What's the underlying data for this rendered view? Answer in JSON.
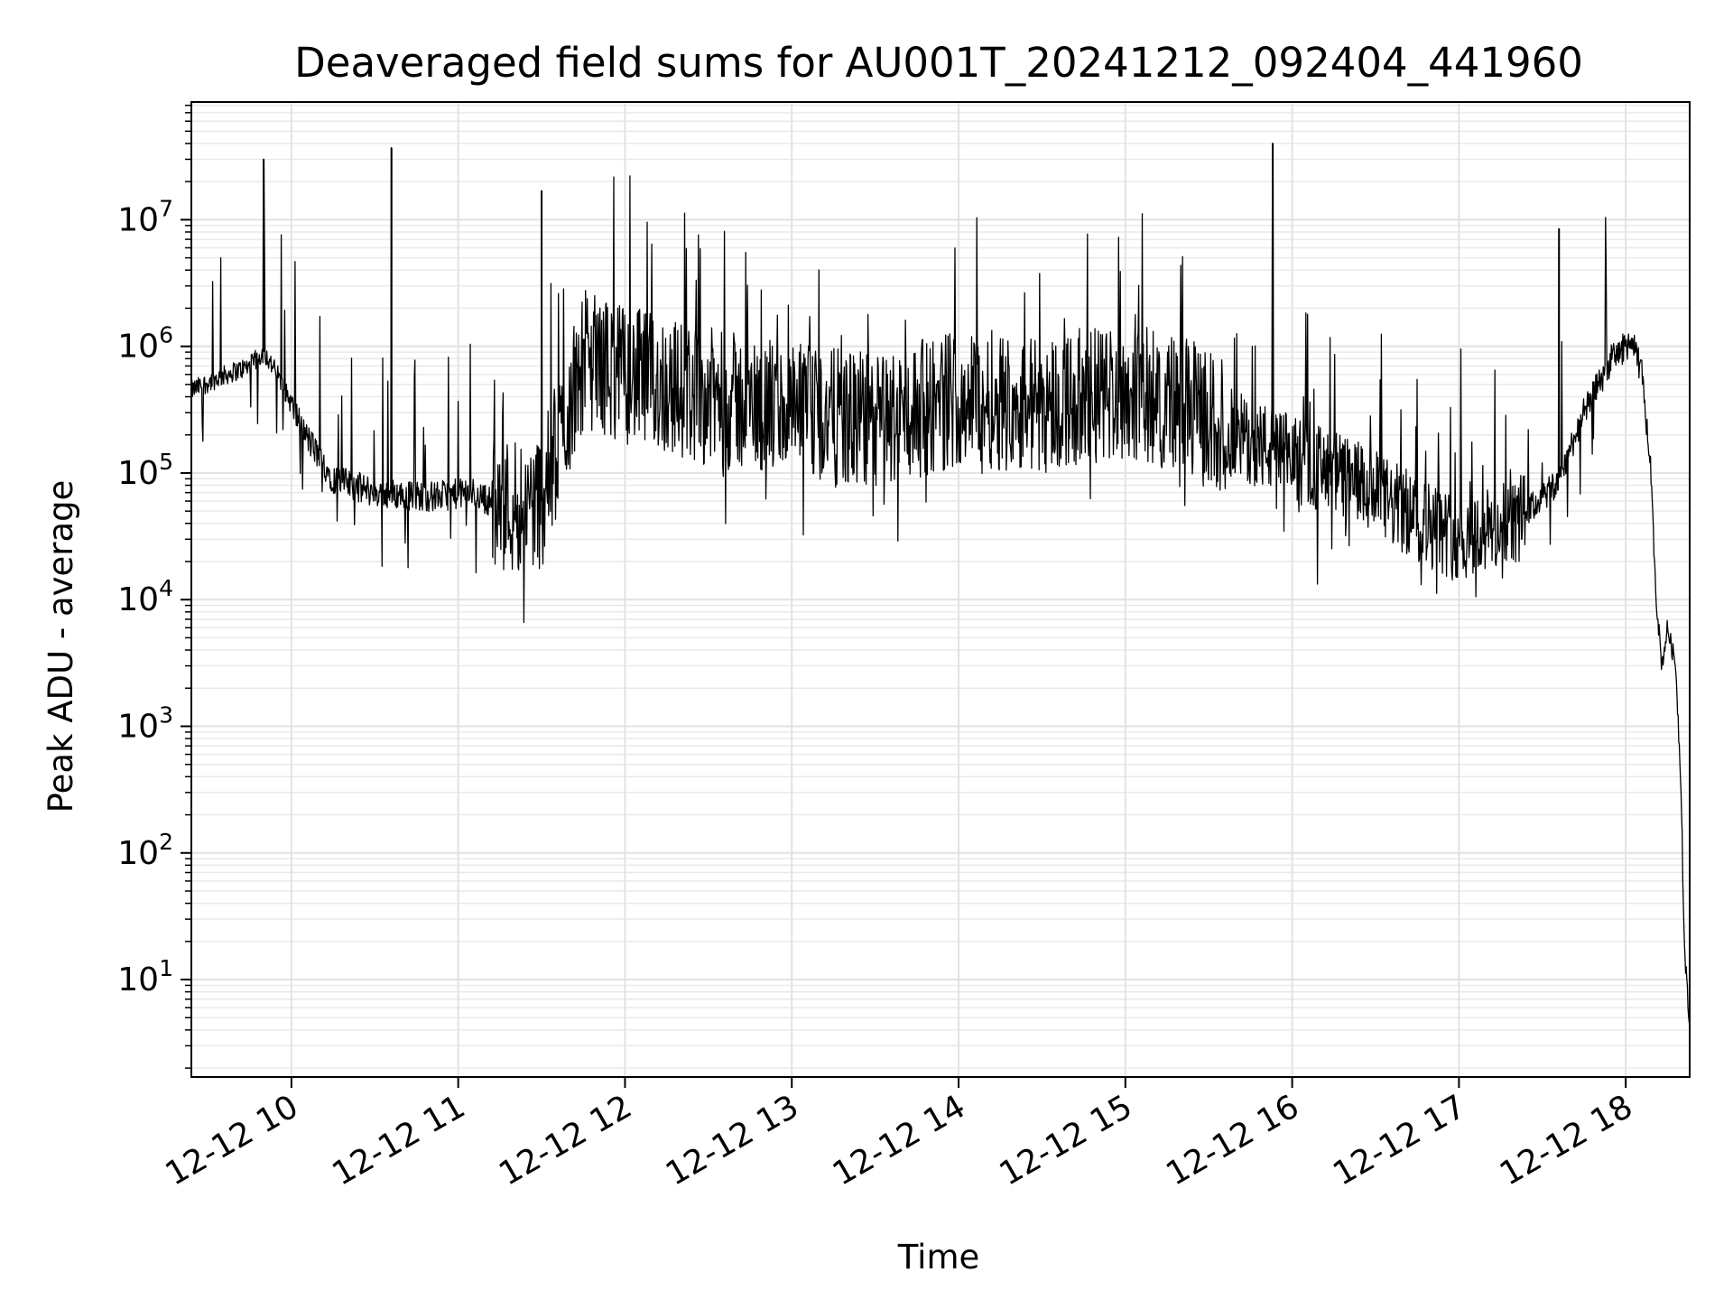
{
  "chart_data": {
    "type": "line",
    "title": "Deaveraged field sums for AU001T_20241212_092404_441960",
    "xlabel": "Time",
    "ylabel": "Peak ADU - average",
    "yscale": "log",
    "grid": true,
    "legend": "none",
    "line_color": "#000000",
    "xlim": [
      "2024-12-12 09:24",
      "2024-12-12 18:23"
    ],
    "ylim": [
      1.7,
      85000000.0
    ],
    "xticks": [
      {
        "label": "12-12 10",
        "value": "2024-12-12 10:00"
      },
      {
        "label": "12-12 11",
        "value": "2024-12-12 11:00"
      },
      {
        "label": "12-12 12",
        "value": "2024-12-12 12:00"
      },
      {
        "label": "12-12 13",
        "value": "2024-12-12 13:00"
      },
      {
        "label": "12-12 14",
        "value": "2024-12-12 14:00"
      },
      {
        "label": "12-12 15",
        "value": "2024-12-12 15:00"
      },
      {
        "label": "12-12 16",
        "value": "2024-12-12 16:00"
      },
      {
        "label": "12-12 17",
        "value": "2024-12-12 17:00"
      },
      {
        "label": "12-12 18",
        "value": "2024-12-12 18:00"
      }
    ],
    "yticks": [
      {
        "base": "10",
        "exp": "1",
        "value": 10
      },
      {
        "base": "10",
        "exp": "2",
        "value": 100
      },
      {
        "base": "10",
        "exp": "3",
        "value": 1000
      },
      {
        "base": "10",
        "exp": "4",
        "value": 10000
      },
      {
        "base": "10",
        "exp": "5",
        "value": 100000
      },
      {
        "base": "10",
        "exp": "6",
        "value": 1000000
      },
      {
        "base": "10",
        "exp": "7",
        "value": 10000000
      }
    ],
    "series": [
      {
        "values_envelope": [
          {
            "x": "2024-12-12 09:24",
            "y": 450000
          },
          {
            "x": "2024-12-12 09:35",
            "y": 580000
          },
          {
            "x": "2024-12-12 09:45",
            "y": 700000
          },
          {
            "x": "2024-12-12 09:50",
            "y": 900000
          },
          {
            "x": "2024-12-12 09:55",
            "y": 600000
          },
          {
            "x": "2024-12-12 10:05",
            "y": 200000
          },
          {
            "x": "2024-12-12 10:15",
            "y": 90000
          },
          {
            "x": "2024-12-12 10:30",
            "y": 70000
          },
          {
            "x": "2024-12-12 10:50",
            "y": 65000
          },
          {
            "x": "2024-12-12 11:05",
            "y": 70000
          },
          {
            "x": "2024-12-12 11:15",
            "y": 55000
          },
          {
            "x": "2024-12-12 11:30",
            "y": 60000
          },
          {
            "x": "2024-12-12 11:45",
            "y": 800000
          },
          {
            "x": "2024-12-12 12:00",
            "y": 600000
          },
          {
            "x": "2024-12-12 12:30",
            "y": 400000
          },
          {
            "x": "2024-12-12 13:00",
            "y": 300000
          },
          {
            "x": "2024-12-12 13:30",
            "y": 250000
          },
          {
            "x": "2024-12-12 14:00",
            "y": 400000
          },
          {
            "x": "2024-12-12 14:30",
            "y": 350000
          },
          {
            "x": "2024-12-12 15:00",
            "y": 450000
          },
          {
            "x": "2024-12-12 15:20",
            "y": 350000
          },
          {
            "x": "2024-12-12 15:40",
            "y": 200000
          },
          {
            "x": "2024-12-12 16:00",
            "y": 130000
          },
          {
            "x": "2024-12-12 16:20",
            "y": 90000
          },
          {
            "x": "2024-12-12 16:40",
            "y": 50000
          },
          {
            "x": "2024-12-12 17:00",
            "y": 30000
          },
          {
            "x": "2024-12-12 17:20",
            "y": 40000
          },
          {
            "x": "2024-12-12 17:35",
            "y": 80000
          },
          {
            "x": "2024-12-12 17:45",
            "y": 300000
          },
          {
            "x": "2024-12-12 17:55",
            "y": 800000
          },
          {
            "x": "2024-12-12 18:02",
            "y": 1100000
          },
          {
            "x": "2024-12-12 18:06",
            "y": 600000
          },
          {
            "x": "2024-12-12 18:09",
            "y": 100000
          },
          {
            "x": "2024-12-12 18:11",
            "y": 10000
          },
          {
            "x": "2024-12-12 18:13",
            "y": 3000
          },
          {
            "x": "2024-12-12 18:15",
            "y": 6000
          },
          {
            "x": "2024-12-12 18:18",
            "y": 3000
          },
          {
            "x": "2024-12-12 18:20",
            "y": 300
          },
          {
            "x": "2024-12-12 18:21",
            "y": 20
          },
          {
            "x": "2024-12-12 18:23",
            "y": 4
          }
        ],
        "spikes": [
          {
            "x": "2024-12-12 09:50",
            "y": 30000000
          },
          {
            "x": "2024-12-12 10:36",
            "y": 37000000
          },
          {
            "x": "2024-12-12 11:30",
            "y": 17000000
          },
          {
            "x": "2024-12-12 15:53",
            "y": 40000000
          },
          {
            "x": "2024-12-12 17:36",
            "y": 8500000
          }
        ]
      }
    ]
  }
}
